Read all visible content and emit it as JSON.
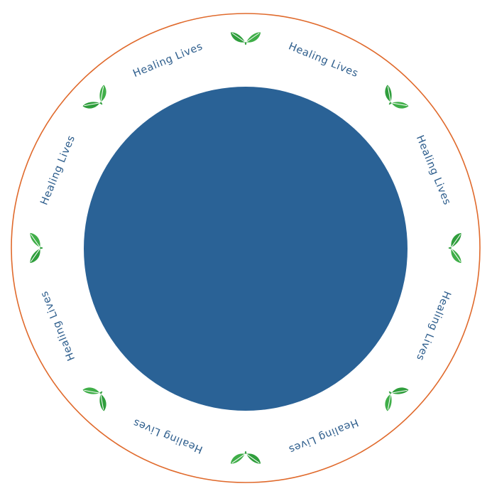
{
  "badge": {
    "ring_text": "Healing Lives",
    "ring_text_count": 8,
    "leaf_icon_count": 8,
    "leaf_icon": "leaf-pair-icon",
    "colors": {
      "background": "#ffffff",
      "outer_ring": "#e06a2c",
      "center_disc": "#2a6296",
      "ring_text": "#2d5d8c",
      "leaf_dark": "#2f9e3c",
      "leaf_light": "#5cc25e",
      "leaf_vein": "#ffffff"
    }
  }
}
